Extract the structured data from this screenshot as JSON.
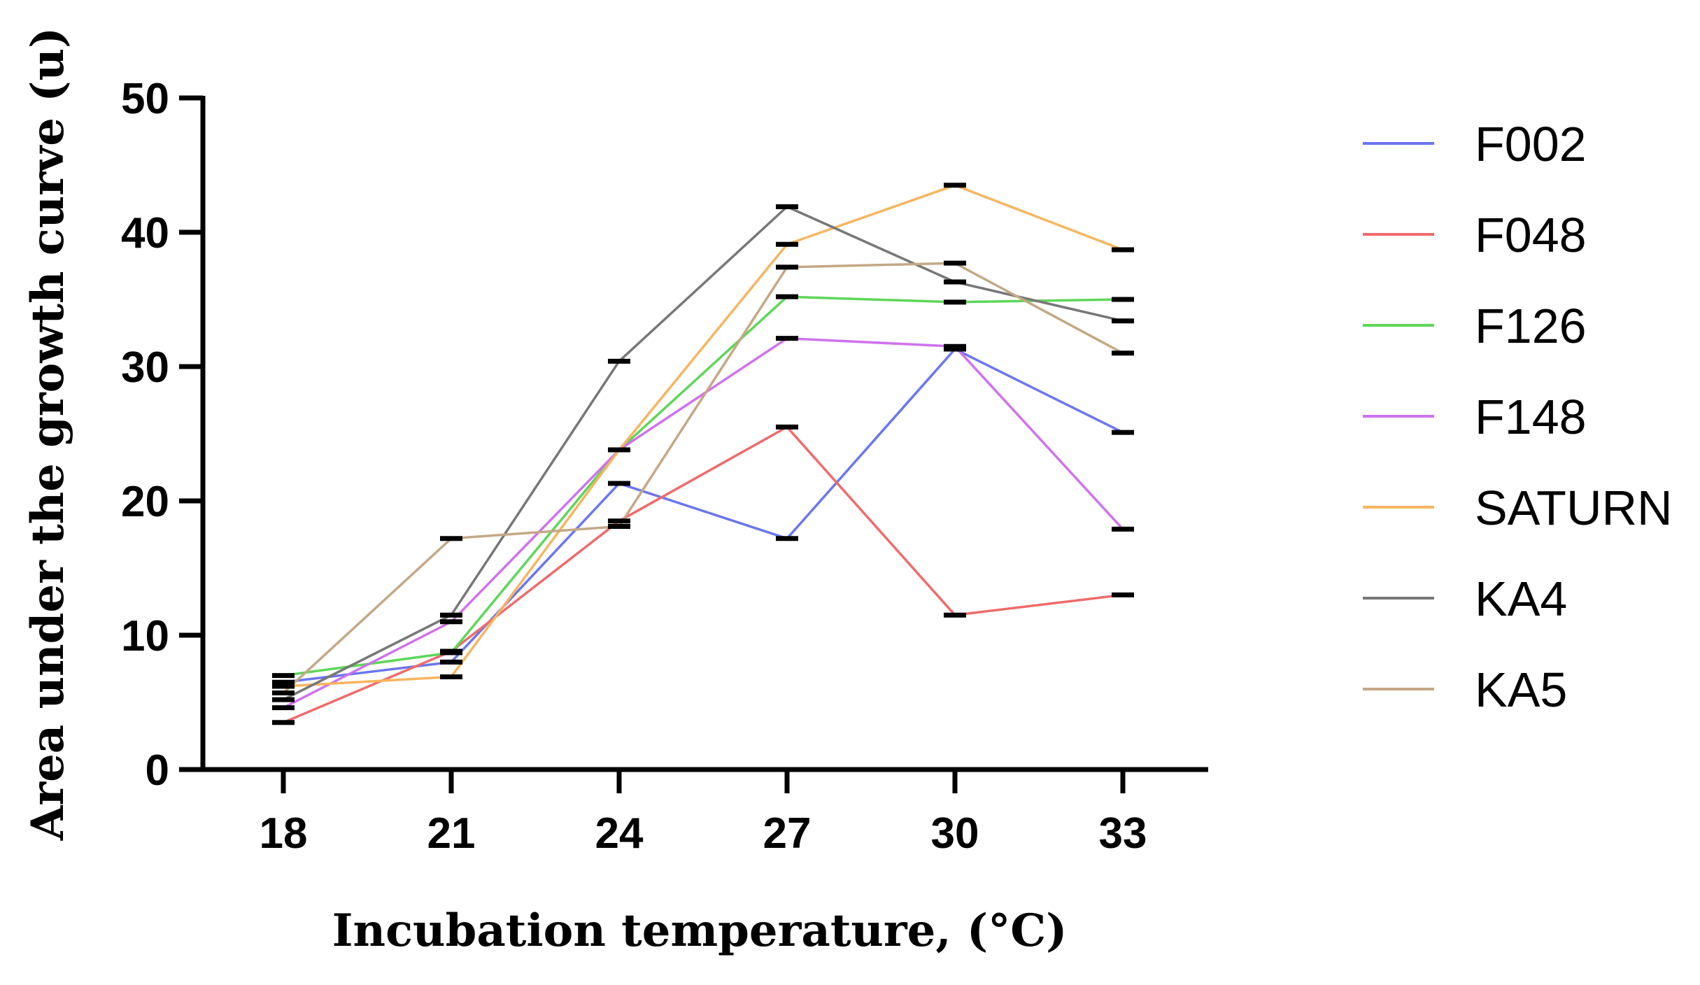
{
  "chart_data": {
    "type": "line",
    "xlabel": "Incubation temperature, (°C)",
    "ylabel": "Area under the growth curve (u)",
    "categories": [
      "18",
      "21",
      "24",
      "27",
      "30",
      "33"
    ],
    "ylim": [
      0,
      50
    ],
    "yticks": [
      "0",
      "10",
      "20",
      "30",
      "40",
      "50"
    ],
    "legend_position": "right",
    "series": [
      {
        "name": "F002",
        "color": "#6b76f0",
        "values": [
          6.5,
          8.0,
          21.3,
          17.2,
          31.3,
          25.1
        ]
      },
      {
        "name": "F048",
        "color": "#ef6b6b",
        "values": [
          3.5,
          8.8,
          18.5,
          25.5,
          11.5,
          13.0
        ]
      },
      {
        "name": "F126",
        "color": "#5ed65a",
        "values": [
          7.0,
          8.7,
          23.8,
          35.2,
          34.8,
          35.0
        ]
      },
      {
        "name": "F148",
        "color": "#cf72ee",
        "values": [
          4.6,
          11.0,
          23.8,
          32.1,
          31.5,
          17.9
        ]
      },
      {
        "name": "SATURN",
        "color": "#f7b560",
        "values": [
          6.2,
          6.9,
          23.8,
          39.1,
          43.5,
          38.7
        ]
      },
      {
        "name": "KA4",
        "color": "#777777",
        "values": [
          5.2,
          11.5,
          30.4,
          41.9,
          36.3,
          33.4
        ]
      },
      {
        "name": "KA5",
        "color": "#c4a885",
        "values": [
          5.7,
          17.2,
          18.1,
          37.4,
          37.7,
          31.0
        ]
      }
    ]
  }
}
